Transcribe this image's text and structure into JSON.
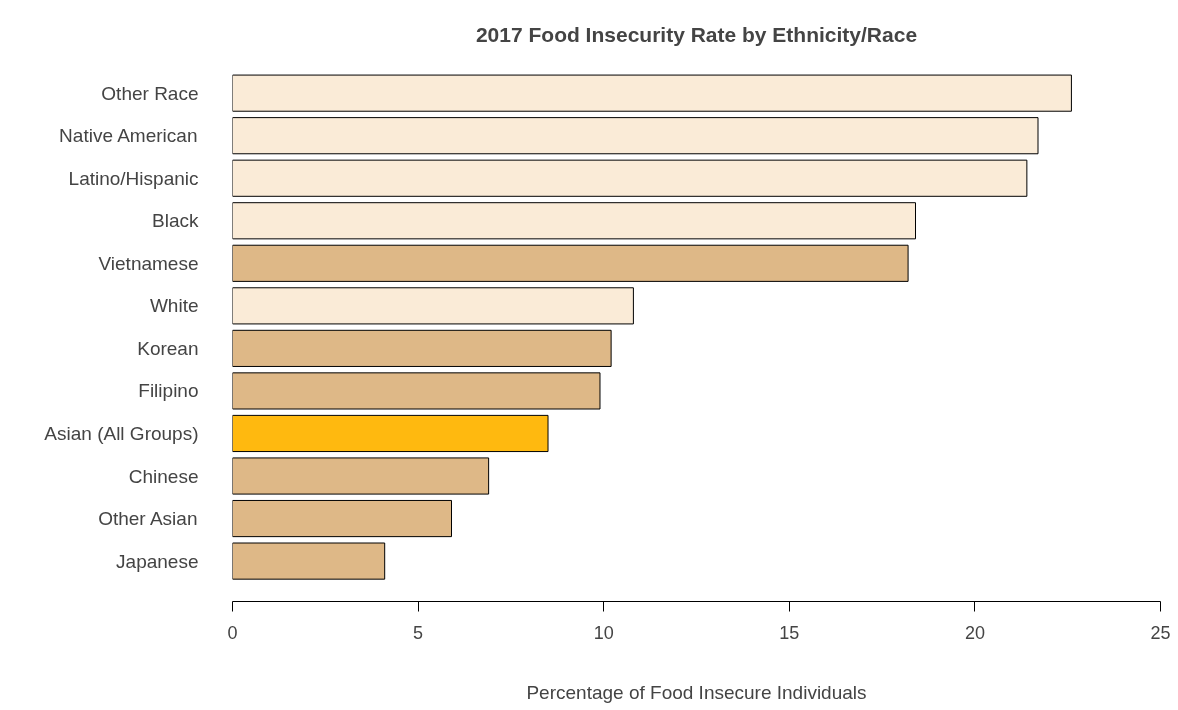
{
  "chart_data": {
    "type": "bar",
    "orientation": "horizontal",
    "title": "2017 Food Insecurity Rate by Ethnicity/Race",
    "xlabel": "Percentage of Food Insecure Individuals",
    "categories": [
      "Other Race",
      "Native American",
      "Latino/Hispanic",
      "Black",
      "Vietnamese",
      "White",
      "Korean",
      "Filipino",
      "Asian (All Groups)",
      "Chinese",
      "Other Asian",
      "Japanese"
    ],
    "values": [
      22.6,
      21.7,
      21.4,
      18.4,
      18.2,
      10.8,
      10.2,
      9.9,
      8.5,
      6.9,
      5.9,
      4.1
    ],
    "colors": [
      "#faebd7",
      "#faebd7",
      "#faebd7",
      "#faebd7",
      "#deb887",
      "#faebd7",
      "#deb887",
      "#deb887",
      "#ffb90f",
      "#deb887",
      "#deb887",
      "#deb887"
    ],
    "xlim": [
      0,
      25
    ],
    "xticks": [
      0,
      5,
      10,
      15,
      20,
      25
    ]
  }
}
